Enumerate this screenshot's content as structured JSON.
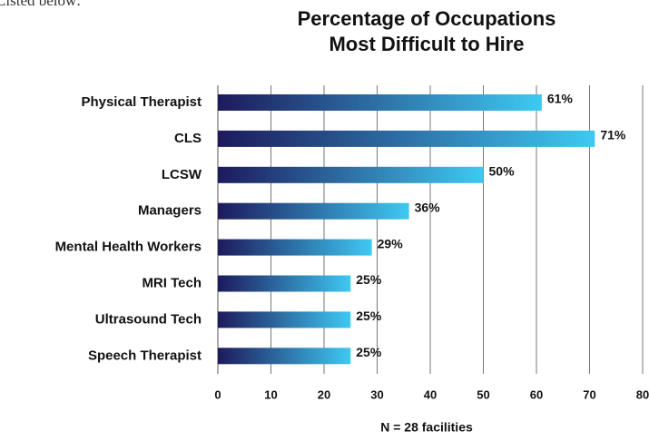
{
  "chart_data": {
    "type": "bar",
    "orientation": "horizontal",
    "annotation": "Listed below:",
    "title": [
      "Percentage of Occupations",
      "Most Difficult to Hire"
    ],
    "categories": [
      "Physical Therapist",
      "CLS",
      "LCSW",
      "Managers",
      "Mental Health Workers",
      "MRI Tech",
      "Ultrasound Tech",
      "Speech Therapist"
    ],
    "values": [
      61,
      71,
      50,
      36,
      29,
      25,
      25,
      25
    ],
    "value_labels": [
      "61%",
      "71%",
      "50%",
      "36%",
      "29%",
      "25%",
      "25%",
      "25%"
    ],
    "gradient": [
      "#1d1a5c",
      "#3ec9f2"
    ],
    "xlim": [
      0,
      80
    ],
    "xticks": [
      0,
      10,
      20,
      30,
      40,
      50,
      60,
      70,
      80
    ],
    "grid": true,
    "note": "N = 28 facilities"
  }
}
